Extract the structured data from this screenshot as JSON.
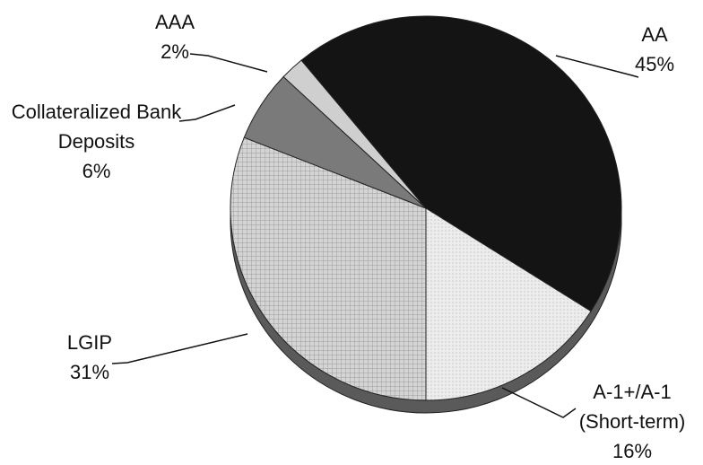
{
  "chart_data": {
    "type": "pie",
    "categories": [
      "LGIP",
      "Collateralized Bank Deposits",
      "AAA",
      "AA",
      "A-1+/A-1 (Short-term)"
    ],
    "values": [
      31,
      6,
      2,
      45,
      16
    ],
    "value_labels": [
      "31%",
      "6%",
      "2%",
      "45%",
      "16%"
    ],
    "colors": [
      "#d4d4d4",
      "#7a7a7a",
      "#cfcfcf",
      "#141414",
      "#ececec"
    ]
  }
}
